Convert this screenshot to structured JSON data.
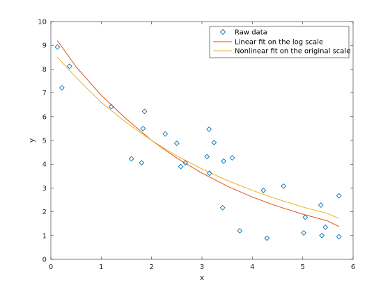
{
  "chart_data": {
    "type": "scatter",
    "title": "",
    "xlabel": "x",
    "ylabel": "y",
    "xlim": [
      0,
      6
    ],
    "ylim": [
      0,
      10
    ],
    "xticks": [
      "0",
      "1",
      "2",
      "3",
      "4",
      "5",
      "6"
    ],
    "yticks": [
      "0",
      "1",
      "2",
      "3",
      "4",
      "5",
      "6",
      "7",
      "8",
      "9",
      "10"
    ],
    "grid": false,
    "legend_position": "top-right",
    "series": [
      {
        "name": "Raw data",
        "kind": "marker",
        "marker": "diamond",
        "color": "#0072BD",
        "points": [
          [
            0.13,
            8.93
          ],
          [
            0.22,
            7.21
          ],
          [
            0.37,
            8.12
          ],
          [
            1.2,
            6.42
          ],
          [
            1.6,
            4.23
          ],
          [
            1.8,
            4.06
          ],
          [
            1.83,
            5.5
          ],
          [
            1.86,
            6.22
          ],
          [
            2.27,
            5.27
          ],
          [
            2.5,
            4.88
          ],
          [
            2.58,
            3.9
          ],
          [
            2.67,
            4.06
          ],
          [
            3.1,
            4.32
          ],
          [
            3.14,
            5.47
          ],
          [
            3.15,
            3.62
          ],
          [
            3.24,
            4.91
          ],
          [
            3.41,
            2.17
          ],
          [
            3.43,
            4.13
          ],
          [
            3.6,
            4.27
          ],
          [
            3.75,
            1.2
          ],
          [
            4.22,
            2.9
          ],
          [
            4.29,
            0.89
          ],
          [
            4.62,
            3.08
          ],
          [
            5.02,
            1.11
          ],
          [
            5.05,
            1.77
          ],
          [
            5.36,
            2.28
          ],
          [
            5.38,
            1.0
          ],
          [
            5.45,
            1.35
          ],
          [
            5.72,
            2.67
          ],
          [
            5.72,
            0.95
          ]
        ]
      },
      {
        "name": "Linear fit on the log scale",
        "kind": "line",
        "color": "#D95319",
        "points": [
          [
            0.13,
            9.2
          ],
          [
            0.5,
            8.1
          ],
          [
            1.0,
            6.9
          ],
          [
            1.5,
            5.9
          ],
          [
            2.0,
            5.0
          ],
          [
            2.5,
            4.26
          ],
          [
            3.0,
            3.63
          ],
          [
            3.5,
            3.08
          ],
          [
            4.0,
            2.62
          ],
          [
            4.5,
            2.23
          ],
          [
            5.0,
            1.9
          ],
          [
            5.5,
            1.61
          ],
          [
            5.72,
            1.38
          ]
        ]
      },
      {
        "name": "Nonlinear fit on the original scale",
        "kind": "line",
        "color": "#EDB120",
        "points": [
          [
            0.13,
            8.5
          ],
          [
            0.5,
            7.65
          ],
          [
            1.0,
            6.6
          ],
          [
            1.5,
            5.75
          ],
          [
            2.0,
            5.0
          ],
          [
            2.5,
            4.35
          ],
          [
            3.0,
            3.8
          ],
          [
            3.5,
            3.32
          ],
          [
            4.0,
            2.9
          ],
          [
            4.5,
            2.53
          ],
          [
            5.0,
            2.2
          ],
          [
            5.5,
            1.92
          ],
          [
            5.72,
            1.72
          ]
        ]
      }
    ]
  }
}
